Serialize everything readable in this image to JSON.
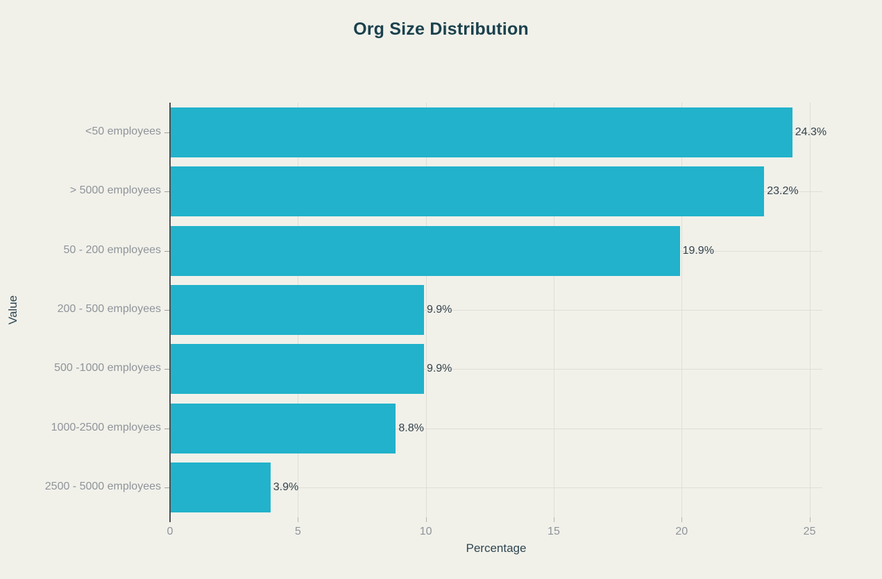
{
  "chart_data": {
    "type": "bar",
    "orientation": "horizontal",
    "title": "Org Size Distribution",
    "xlabel": "Percentage",
    "ylabel": "Value",
    "categories": [
      "<50 employees",
      "> 5000 employees",
      "50 - 200 employees",
      "200 - 500 employees",
      "500 -1000 employees",
      "1000-2500 employees",
      "2500 - 5000 employees"
    ],
    "values": [
      24.3,
      23.2,
      19.9,
      9.9,
      9.9,
      8.8,
      3.9
    ],
    "bar_labels": [
      "24.3%",
      "23.2%",
      "19.9%",
      "9.9%",
      "9.9%",
      "8.8%",
      "3.9%"
    ],
    "xticks": [
      "0",
      "5",
      "10",
      "15",
      "20",
      "25"
    ],
    "xtick_values": [
      0,
      5,
      10,
      15,
      20,
      25
    ],
    "xlim": [
      0,
      25.5
    ],
    "grid": true,
    "legend_position": "none",
    "colors": {
      "bar": "#22b2cb",
      "background": "#f1f1ea",
      "grid": "#dfded6",
      "axis_line": "#4d4d4d",
      "tick_label": "#8f9499",
      "value_label": "#33424c",
      "title": "#1b414d",
      "axis_title": "#2e4550",
      "cat_tick": "#a0a099",
      "x_tick_mark": "#b5b4ac"
    }
  }
}
